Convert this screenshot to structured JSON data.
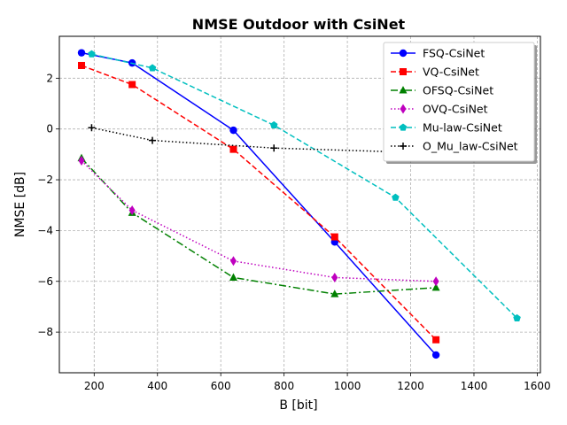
{
  "chart_data": {
    "type": "line",
    "title": "NMSE Outdoor with CsiNet",
    "xlabel": "B [bit]",
    "ylabel": "NMSE [dB]",
    "xlim": [
      90,
      1610
    ],
    "ylim": [
      -9.6,
      3.65
    ],
    "xticks": [
      200,
      400,
      600,
      800,
      1000,
      1200,
      1400,
      1600
    ],
    "yticks": [
      -8,
      -6,
      -4,
      -2,
      0,
      2
    ],
    "grid": true,
    "legend_position": "top-right",
    "series": [
      {
        "name": "FSQ-CsiNet",
        "color": "#0000ff",
        "dash": "solid",
        "marker": "circle",
        "x": [
          160,
          320,
          640,
          960,
          1280
        ],
        "y": [
          3.0,
          2.6,
          -0.05,
          -4.45,
          -8.9
        ]
      },
      {
        "name": "VQ-CsiNet",
        "color": "#ff0000",
        "dash": "dashed",
        "marker": "square",
        "x": [
          160,
          320,
          640,
          960,
          1280
        ],
        "y": [
          2.5,
          1.75,
          -0.8,
          -4.25,
          -8.3
        ]
      },
      {
        "name": "OFSQ-CsiNet",
        "color": "#008000",
        "dash": "dashdot",
        "marker": "triangle",
        "x": [
          160,
          320,
          640,
          960,
          1280
        ],
        "y": [
          -1.15,
          -3.3,
          -5.85,
          -6.5,
          -6.25
        ]
      },
      {
        "name": "OVQ-CsiNet",
        "color": "#bf00bf",
        "dash": "dotted",
        "marker": "diamond",
        "x": [
          160,
          320,
          640,
          960,
          1280
        ],
        "y": [
          -1.25,
          -3.2,
          -5.2,
          -5.85,
          -6.0
        ]
      },
      {
        "name": "Mu-law-CsiNet",
        "color": "#00bfbf",
        "dash": "dashed",
        "marker": "pentagon",
        "x": [
          192,
          384,
          768,
          1152,
          1536
        ],
        "y": [
          2.95,
          2.4,
          0.15,
          -2.7,
          -7.45
        ]
      },
      {
        "name": "O_Mu_law-CsiNet",
        "color": "#000000",
        "dash": "dotted",
        "marker": "plus",
        "x": [
          192,
          384,
          768,
          1152,
          1536
        ],
        "y": [
          0.05,
          -0.45,
          -0.75,
          -0.9,
          -0.95
        ]
      }
    ]
  }
}
